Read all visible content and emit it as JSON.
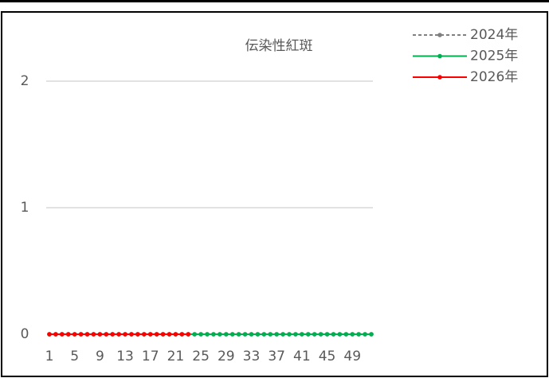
{
  "chart_data": {
    "type": "line",
    "title": "伝染性紅斑",
    "categories": [
      1,
      null,
      null,
      null,
      5,
      null,
      null,
      null,
      9,
      null,
      null,
      null,
      13,
      null,
      null,
      null,
      17,
      null,
      null,
      null,
      21,
      null,
      null,
      null,
      25,
      null,
      null,
      null,
      29,
      null,
      null,
      null,
      33,
      null,
      null,
      null,
      37,
      null,
      null,
      null,
      41,
      null,
      null,
      null,
      45,
      null,
      null,
      null,
      49,
      null,
      null,
      null
    ],
    "series": [
      {
        "name": "2024年",
        "color": "#808080",
        "dash": true,
        "values": [
          0,
          0,
          0,
          0,
          0,
          0,
          0,
          0,
          0,
          0,
          0,
          0,
          0,
          0,
          0,
          0,
          0,
          0,
          0,
          0,
          0,
          0,
          0,
          0,
          0,
          0,
          0,
          0,
          0,
          0,
          0,
          0,
          0,
          0,
          0,
          0,
          0,
          0,
          0,
          0,
          0,
          0,
          0,
          0,
          0,
          0,
          0,
          0,
          0,
          0,
          0,
          0
        ]
      },
      {
        "name": "2025年",
        "color": "#00b050",
        "values": [
          0,
          0,
          0,
          0,
          0,
          0,
          0,
          0,
          0,
          0,
          0,
          0,
          0,
          0,
          0,
          0,
          0,
          0,
          0,
          0,
          0,
          0,
          0,
          0,
          0,
          0,
          0,
          0,
          0,
          0,
          0,
          0,
          0,
          0,
          0,
          0,
          0,
          0,
          0,
          0,
          0,
          0,
          0,
          0,
          0,
          0,
          0,
          0,
          0,
          0,
          0,
          0
        ]
      },
      {
        "name": "2026年",
        "color": "#ff0000",
        "values": [
          0,
          0,
          0,
          0,
          0,
          0,
          0,
          0,
          0,
          0,
          0,
          0,
          0,
          0,
          0,
          0,
          0,
          0,
          0,
          0,
          0,
          0,
          0,
          null,
          null,
          null,
          null,
          null,
          null,
          null,
          null,
          null,
          null,
          null,
          null,
          null,
          null,
          null,
          null,
          null,
          null,
          null,
          null,
          null,
          null,
          null,
          null,
          null,
          null,
          null,
          null,
          null
        ]
      }
    ],
    "ylim": [
      0,
      2
    ],
    "yticks": [
      0,
      1,
      2
    ],
    "grid": true,
    "legend": "top-right"
  }
}
